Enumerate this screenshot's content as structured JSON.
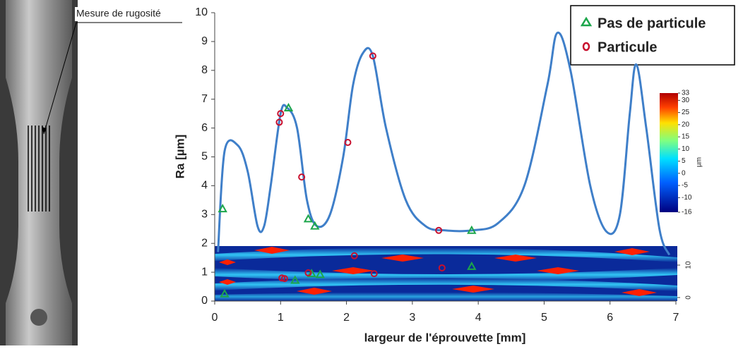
{
  "chart_data": {
    "type": "line",
    "photo_label": "Mesure de rugosité",
    "xlabel": "largeur de l'éprouvette [mm]",
    "ylabel": "Ra [µm]",
    "xlim": [
      0,
      7
    ],
    "ylim": [
      0,
      10
    ],
    "xticks": [
      0,
      1,
      2,
      3,
      4,
      5,
      6,
      7
    ],
    "yticks": [
      0,
      1,
      2,
      3,
      4,
      5,
      6,
      7,
      8,
      9,
      10
    ],
    "legend": "top-right",
    "series": [
      {
        "type": "line",
        "color": "#3f7fc9",
        "x": [
          0.05,
          0.15,
          0.35,
          0.5,
          0.65,
          0.75,
          0.85,
          1.0,
          1.1,
          1.25,
          1.4,
          1.55,
          1.75,
          1.95,
          2.1,
          2.25,
          2.4,
          2.6,
          2.9,
          3.2,
          3.5,
          3.9,
          4.3,
          4.7,
          5.05,
          5.2,
          5.4,
          5.7,
          5.95,
          6.15,
          6.3,
          6.4,
          6.55,
          6.75,
          6.9
        ],
        "values": [
          1.7,
          5.2,
          5.4,
          4.5,
          2.6,
          2.6,
          4.0,
          6.5,
          6.7,
          6.0,
          3.5,
          2.6,
          3.0,
          5.0,
          7.5,
          8.6,
          8.5,
          6.0,
          3.5,
          2.6,
          2.45,
          2.45,
          2.7,
          4.0,
          7.5,
          9.3,
          8.0,
          4.0,
          2.4,
          3.0,
          6.5,
          8.2,
          6.0,
          2.5,
          1.6
        ]
      },
      {
        "type": "scatter",
        "name": "Pas de particule",
        "color": "#1ca64b",
        "marker": "triangle",
        "x": [
          0.12,
          1.12,
          1.42,
          1.52,
          3.9,
          0.15,
          1.22,
          1.47,
          1.6,
          3.9
        ],
        "values": [
          3.2,
          6.7,
          2.85,
          2.6,
          2.45,
          0.25,
          0.72,
          0.95,
          0.92,
          1.2
        ]
      },
      {
        "type": "scatter",
        "name": "Particule",
        "color": "#c8102e",
        "marker": "circle",
        "x": [
          0.98,
          1.0,
          1.32,
          2.02,
          2.4,
          3.4,
          1.02,
          1.06,
          1.42,
          2.12,
          2.42,
          3.45
        ],
        "values": [
          6.2,
          6.5,
          4.3,
          5.5,
          8.5,
          2.45,
          0.8,
          0.78,
          0.98,
          1.57,
          0.95,
          1.15
        ]
      }
    ],
    "colorbar": {
      "unit": "µm",
      "lim": [
        -16,
        33
      ],
      "ticks": [
        33,
        30,
        25,
        20,
        15,
        10,
        5,
        0,
        -5,
        -10,
        -16
      ]
    },
    "heatmap_ticks": [
      10,
      0
    ]
  }
}
